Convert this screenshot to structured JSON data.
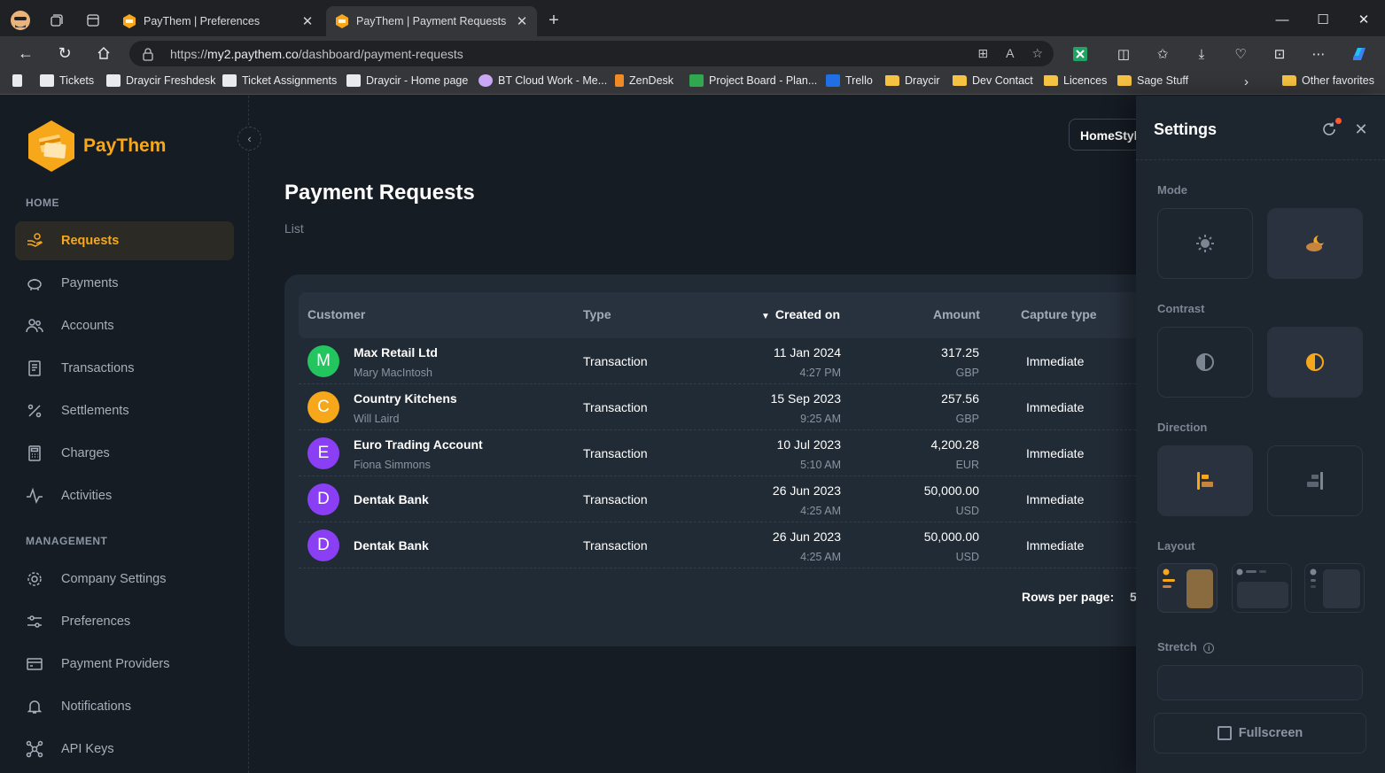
{
  "browser": {
    "tabs": [
      {
        "title": "PayThem | Preferences",
        "active": false
      },
      {
        "title": "PayThem | Payment Requests",
        "active": true
      }
    ],
    "url_scheme": "https://",
    "url_host": "my2.paythem.co",
    "url_path": "/dashboard/payment-requests",
    "bookmarks": [
      "Tickets",
      "Draycir Freshdesk",
      "Ticket Assignments",
      "Draycir - Home page",
      "BT Cloud Work - Me...",
      "ZenDesk",
      "Project Board - Plan...",
      "Trello",
      "Draycir",
      "Dev Contact",
      "Licences",
      "Sage Stuff"
    ],
    "other_favorites": "Other favorites"
  },
  "app": {
    "brand": "PayThem",
    "brand_color": "#f6a71a",
    "nav": {
      "home_section": "HOME",
      "home_items": [
        "Requests",
        "Payments",
        "Accounts",
        "Transactions",
        "Settlements",
        "Charges",
        "Activities"
      ],
      "management_section": "MANAGEMENT",
      "management_items": [
        "Company Settings",
        "Preferences",
        "Payment Providers",
        "Notifications",
        "API Keys"
      ]
    },
    "page_title": "Payment Requests",
    "breadcrumb": "List",
    "company_button": "HomeStyl",
    "table": {
      "columns": [
        "Customer",
        "Type",
        "Created on",
        "Amount",
        "Capture type"
      ],
      "rows": [
        {
          "initial": "M",
          "avatar_color": "#22c55e",
          "name": "Max Retail Ltd",
          "contact": "Mary MacIntosh",
          "type": "Transaction",
          "date": "11 Jan 2024",
          "time": "4:27 PM",
          "amount": "317.25",
          "currency": "GBP",
          "capture": "Immediate"
        },
        {
          "initial": "C",
          "avatar_color": "#f6a71a",
          "name": "Country Kitchens",
          "contact": "Will Laird",
          "type": "Transaction",
          "date": "15 Sep 2023",
          "time": "9:25 AM",
          "amount": "257.56",
          "currency": "GBP",
          "capture": "Immediate"
        },
        {
          "initial": "E",
          "avatar_color": "#8b3ff5",
          "name": "Euro Trading Account",
          "contact": "Fiona Simmons",
          "type": "Transaction",
          "date": "10 Jul 2023",
          "time": "5:10 AM",
          "amount": "4,200.28",
          "currency": "EUR",
          "capture": "Immediate"
        },
        {
          "initial": "D",
          "avatar_color": "#8b3ff5",
          "name": "Dentak Bank",
          "contact": "",
          "type": "Transaction",
          "date": "26 Jun 2023",
          "time": "4:25 AM",
          "amount": "50,000.00",
          "currency": "USD",
          "capture": "Immediate"
        },
        {
          "initial": "D",
          "avatar_color": "#8b3ff5",
          "name": "Dentak Bank",
          "contact": "",
          "type": "Transaction",
          "date": "26 Jun 2023",
          "time": "4:25 AM",
          "amount": "50,000.00",
          "currency": "USD",
          "capture": "Immediate"
        }
      ],
      "rows_per_page_label": "Rows per page:",
      "rows_per_page_value": "5"
    },
    "settings": {
      "title": "Settings",
      "mode_label": "Mode",
      "contrast_label": "Contrast",
      "direction_label": "Direction",
      "layout_label": "Layout",
      "stretch_label": "Stretch",
      "fullscreen_label": "Fullscreen"
    }
  }
}
